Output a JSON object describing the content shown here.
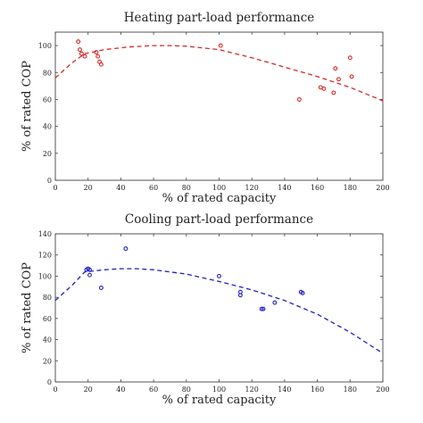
{
  "chart_data": [
    {
      "type": "scatter",
      "title": "Heating part-load performance",
      "xlabel": "% of rated capacity",
      "ylabel": "% of rated COP",
      "xlim": [
        0,
        200
      ],
      "ylim": [
        0,
        110
      ],
      "xticks": [
        0,
        20,
        40,
        60,
        80,
        100,
        120,
        140,
        160,
        180,
        200
      ],
      "yticks": [
        0,
        20,
        40,
        60,
        80,
        100
      ],
      "grid": false,
      "color": "#d62728",
      "series": [
        {
          "kind": "points",
          "x": [
            14,
            15,
            16,
            18,
            25,
            26,
            27,
            28,
            101,
            149,
            162,
            164,
            170,
            171,
            173,
            180,
            181
          ],
          "y": [
            103,
            97,
            94,
            92,
            95,
            92,
            88,
            86,
            100,
            60,
            69,
            68,
            65,
            83,
            75,
            91,
            77
          ]
        },
        {
          "kind": "fit-curve",
          "x": [
            0,
            10,
            18,
            30,
            45,
            60,
            70,
            80,
            100,
            120,
            140,
            160,
            180,
            200
          ],
          "y": [
            76,
            87,
            94,
            97,
            99,
            100,
            100,
            99.5,
            97,
            91,
            84,
            77,
            69,
            59
          ]
        }
      ]
    },
    {
      "type": "scatter",
      "title": "Cooling part-load performance",
      "xlabel": "% of rated capacity",
      "ylabel": "% of rated COP",
      "xlim": [
        0,
        200
      ],
      "ylim": [
        0,
        140
      ],
      "xticks": [
        0,
        20,
        40,
        60,
        80,
        100,
        120,
        140,
        160,
        180,
        200
      ],
      "yticks": [
        0,
        20,
        40,
        60,
        80,
        100,
        120,
        140
      ],
      "grid": false,
      "color": "#1f1fbf",
      "series": [
        {
          "kind": "points",
          "x": [
            19,
            20,
            21,
            21,
            28,
            43,
            100,
            113,
            113,
            126,
            127,
            134,
            150,
            151
          ],
          "y": [
            106,
            107,
            106,
            101,
            89,
            126,
            100,
            85,
            82,
            69,
            69,
            75,
            85,
            84
          ]
        },
        {
          "kind": "fit-curve",
          "x": [
            0,
            10,
            18,
            30,
            40,
            50,
            60,
            80,
            100,
            120,
            140,
            160,
            180,
            200
          ],
          "y": [
            77,
            91,
            104,
            106,
            107,
            107,
            106,
            102,
            95,
            87,
            77,
            64,
            47,
            27
          ]
        }
      ]
    }
  ]
}
